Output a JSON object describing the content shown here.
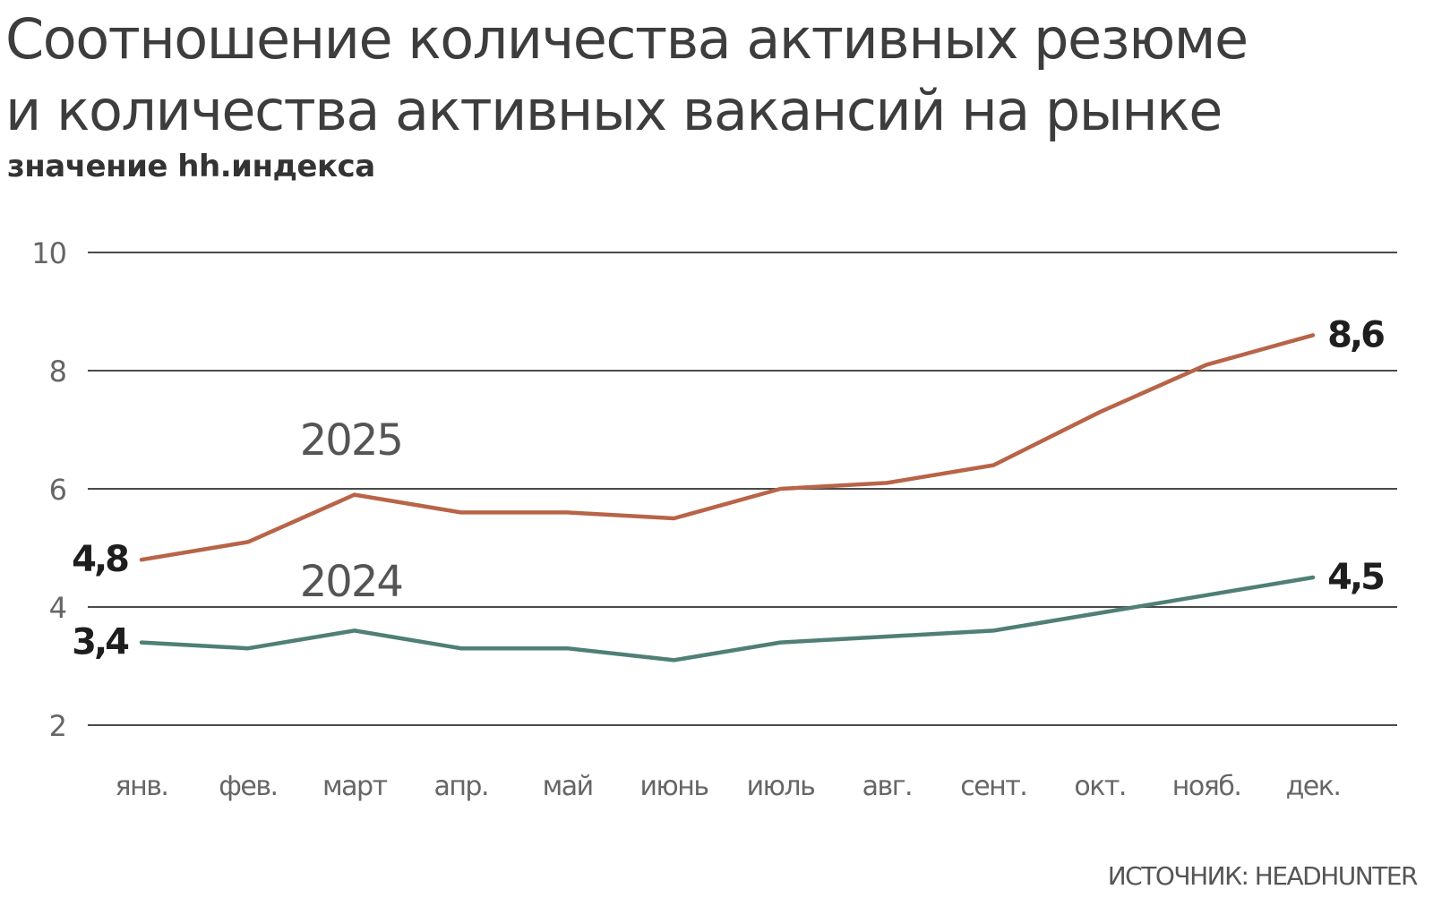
{
  "header": {
    "title_line1": "Соотношение количества активных резюме",
    "title_line2": "и количества активных вакансий на рынке",
    "subtitle": "значение hh.индекса"
  },
  "footer": {
    "source": "ИСТОЧНИК: HEADHUNTER"
  },
  "colors": {
    "series_2025": "#b86448",
    "series_2024": "#4f7f76",
    "gridline": "#4a4a4a",
    "axis_text": "#666666",
    "value_label": "#1e1e1e",
    "series_label": "#555555"
  },
  "chart_data": {
    "type": "line",
    "title": "Соотношение количества активных резюме и количества активных вакансий на рынке",
    "subtitle": "значение hh.индекса",
    "xlabel": "",
    "ylabel": "",
    "categories": [
      "янв.",
      "фев.",
      "март",
      "апр.",
      "май",
      "июнь",
      "июль",
      "авг.",
      "сент.",
      "окт.",
      "нояб.",
      "дек."
    ],
    "y_ticks": [
      2,
      4,
      6,
      8,
      10
    ],
    "ylim": [
      2,
      10
    ],
    "grid": "horizontal",
    "legend": "none",
    "series": [
      {
        "name": "2025",
        "values": [
          4.8,
          5.1,
          5.9,
          5.6,
          5.6,
          5.5,
          6.0,
          6.1,
          6.4,
          7.3,
          8.1,
          8.6
        ],
        "start_label": "4,8",
        "end_label": "8,6"
      },
      {
        "name": "2024",
        "values": [
          3.4,
          3.3,
          3.6,
          3.3,
          3.3,
          3.1,
          3.4,
          3.5,
          3.6,
          3.9,
          4.2,
          4.5
        ],
        "start_label": "3,4",
        "end_label": "4,5"
      }
    ]
  }
}
